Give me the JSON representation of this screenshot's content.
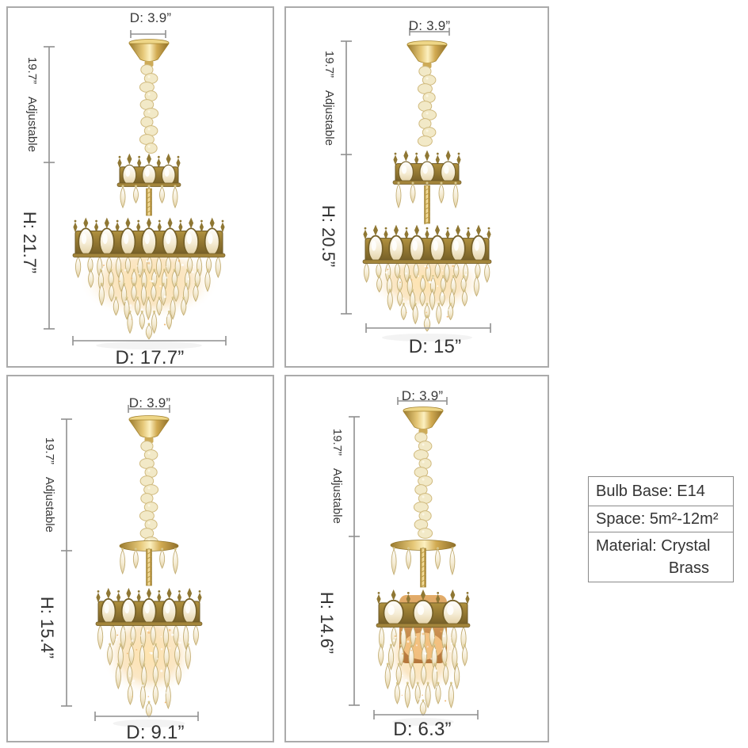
{
  "panels": [
    {
      "id": "size-17-7",
      "canopy_diameter": "D: 3.9”",
      "adjustable_height": "19.7”",
      "adjustable_label": "Adjustable",
      "fixture_height": "H: 21.7”",
      "fixture_diameter": "D: 17.7”"
    },
    {
      "id": "size-15",
      "canopy_diameter": "D: 3.9”",
      "adjustable_height": "19.7”",
      "adjustable_label": "Adjustable",
      "fixture_height": "H: 20.5”",
      "fixture_diameter": "D: 15”"
    },
    {
      "id": "size-9-1",
      "canopy_diameter": "D: 3.9”",
      "adjustable_height": "19.7”",
      "adjustable_label": "Adjustable",
      "fixture_height": "H: 15.4”",
      "fixture_diameter": "D: 9.1”"
    },
    {
      "id": "size-6-3",
      "canopy_diameter": "D: 3.9”",
      "adjustable_height": "19.7”",
      "adjustable_label": "Adjustable",
      "fixture_height": "H: 14.6”",
      "fixture_diameter": "D: 6.3”"
    }
  ],
  "spec_box": {
    "bulb_base": "Bulb Base: E14",
    "space": "Space: 5m²-12m²",
    "material": "Material: Crystal",
    "material_line2": "Brass"
  },
  "colors": {
    "dimension_line": "#8f8f8f",
    "panel_border": "#ababab",
    "text": "#3a3a3a",
    "brass": "#8f7430",
    "gold": "#d2ab52",
    "crystal": "#f5ecd4"
  }
}
